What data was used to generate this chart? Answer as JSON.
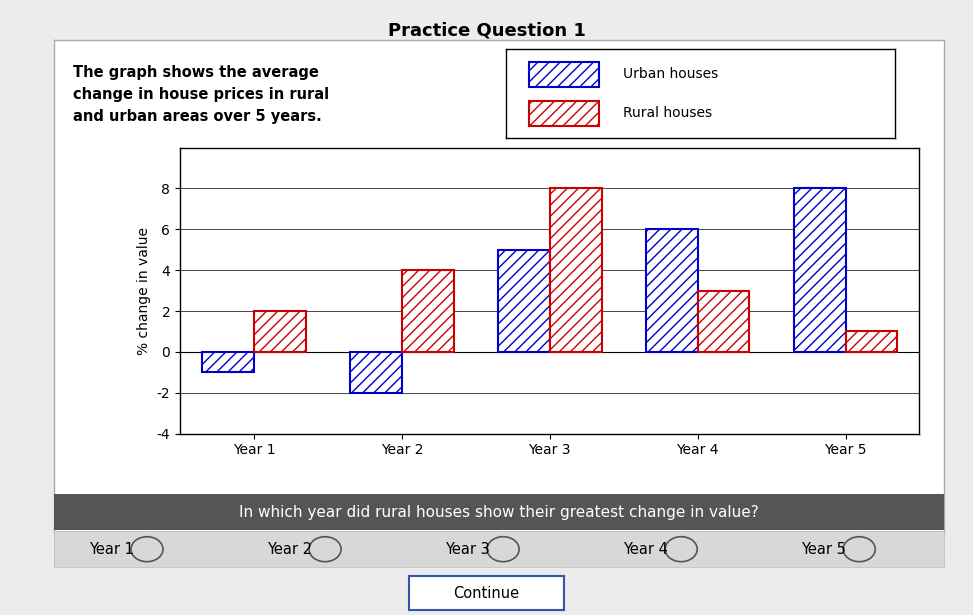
{
  "title": "Practice Question 1",
  "description": "The graph shows the average\nchange in house prices in rural\nand urban areas over 5 years.",
  "question": "In which year did rural houses show their greatest change in value?",
  "answer_options": [
    "Year 1",
    "Year 2",
    "Year 3",
    "Year 4",
    "Year 5"
  ],
  "categories": [
    "Year 1",
    "Year 2",
    "Year 3",
    "Year 4",
    "Year 5"
  ],
  "urban_values": [
    -1,
    -2,
    5,
    6,
    8
  ],
  "rural_values": [
    2,
    4,
    8,
    3,
    1
  ],
  "ylabel": "% change in value",
  "ylim": [
    -4,
    10
  ],
  "yticks": [
    -4,
    -2,
    0,
    2,
    4,
    6,
    8
  ],
  "legend_labels": [
    "Urban houses",
    "Rural houses"
  ],
  "urban_color": "#0000cc",
  "rural_color": "#cc0000",
  "bar_width": 0.35,
  "outer_bg": "#ececec",
  "panel_bg": "#ffffff",
  "question_bg": "#555555",
  "question_fg": "#ffffff",
  "answer_bg": "#d8d8d8",
  "title_fontsize": 13,
  "desc_fontsize": 10.5,
  "axis_fontsize": 10,
  "question_fontsize": 11,
  "answer_fontsize": 10.5
}
